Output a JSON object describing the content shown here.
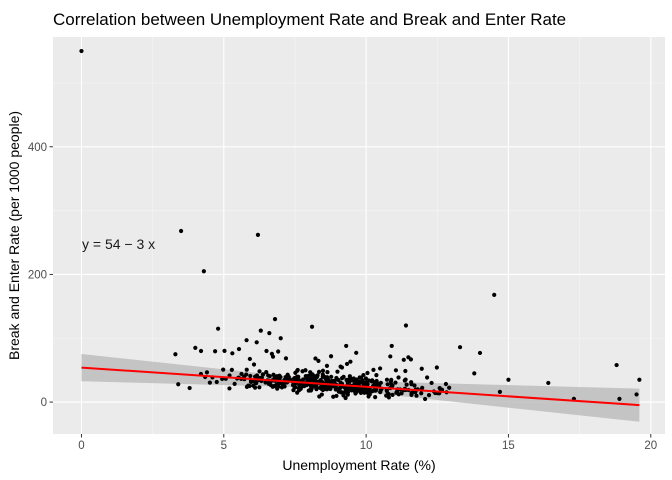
{
  "chart_data": {
    "type": "scatter",
    "title": "Correlation between Unemployment Rate and Break and Enter Rate",
    "xlabel": "Unemployment Rate (%)",
    "ylabel": "Break and Enter Rate (per 1000 people)",
    "xlim": [
      -1.0,
      20.5
    ],
    "ylim": [
      -50,
      572
    ],
    "x_ticks": [
      0,
      5,
      10,
      15,
      20
    ],
    "y_ticks": [
      0,
      200,
      400
    ],
    "grid": true,
    "legend": "none",
    "annotation": "y = 54 − 3 x",
    "annotation_pos": [
      0.1,
      248
    ],
    "fit": {
      "intercept": 54,
      "slope": -3,
      "x_range": [
        0,
        19.6
      ],
      "line_color": "#ff0000",
      "band_color": "#bdbdbd"
    },
    "colors": {
      "panel": "#ebebeb",
      "points": "#000000"
    },
    "points": {
      "outliers": [
        [
          0.0,
          550
        ],
        [
          3.5,
          268
        ],
        [
          6.2,
          262
        ],
        [
          4.3,
          205
        ],
        [
          14.5,
          168
        ],
        [
          6.8,
          130
        ],
        [
          11.4,
          120
        ],
        [
          8.1,
          118
        ],
        [
          4.8,
          115
        ],
        [
          6.3,
          112
        ],
        [
          6.6,
          108
        ],
        [
          7.0,
          100
        ],
        [
          5.8,
          97
        ],
        [
          10.9,
          88
        ],
        [
          9.3,
          88
        ],
        [
          13.3,
          86
        ],
        [
          4.0,
          85
        ],
        [
          4.2,
          80
        ],
        [
          6.5,
          80
        ],
        [
          14.0,
          77
        ],
        [
          3.3,
          75
        ],
        [
          18.8,
          58
        ],
        [
          19.6,
          35
        ],
        [
          16.4,
          30
        ],
        [
          15.0,
          35
        ],
        [
          17.3,
          5
        ],
        [
          18.9,
          5
        ],
        [
          19.5,
          12
        ],
        [
          14.7,
          16
        ],
        [
          13.8,
          45
        ],
        [
          12.3,
          30
        ],
        [
          11.7,
          26
        ],
        [
          3.4,
          28
        ],
        [
          3.8,
          22
        ]
      ],
      "cluster_seed": 7,
      "cluster_count": 440,
      "cluster_x": [
        3.6,
        13.6
      ],
      "cluster_y_sd": 11
    }
  }
}
